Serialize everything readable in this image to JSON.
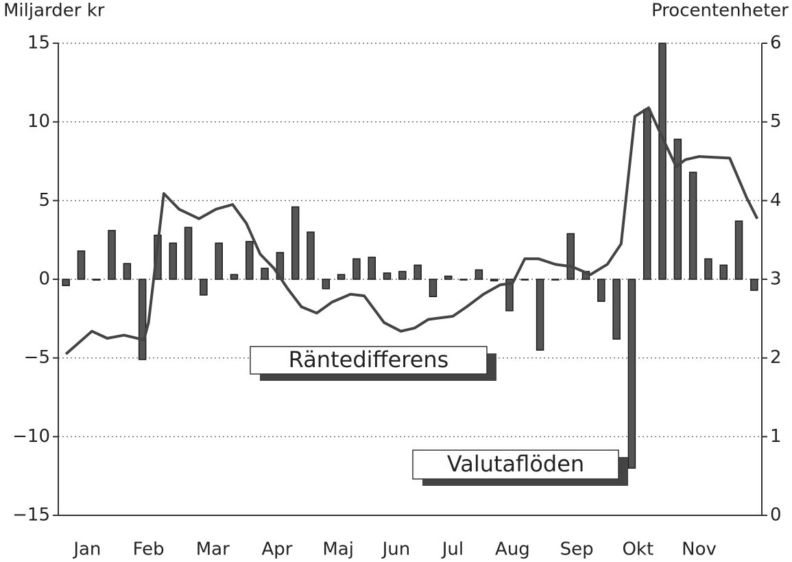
{
  "chart_data": {
    "type": "bar",
    "ylabel": "Miljarder kr",
    "y2label": "Procentenheter",
    "ylim": [
      -15,
      15
    ],
    "yticks": [
      {
        "value": -15,
        "label": "−15"
      },
      {
        "value": -10,
        "label": "−10"
      },
      {
        "value": -5,
        "label": "−5"
      },
      0,
      5,
      10,
      15
    ],
    "y2lim": [
      0,
      6
    ],
    "y2ticks": [
      0,
      1,
      2,
      3,
      4,
      5,
      6
    ],
    "xlim": [
      0,
      46
    ],
    "xticks": [
      {
        "value": 1.9,
        "label": "Jan"
      },
      {
        "value": 5.9,
        "label": "Feb"
      },
      {
        "value": 10.1,
        "label": "Mar"
      },
      {
        "value": 14.3,
        "label": "Apr"
      },
      {
        "value": 18.3,
        "label": "Maj"
      },
      {
        "value": 22.1,
        "label": "Jun"
      },
      {
        "value": 25.8,
        "label": "Jul"
      },
      {
        "value": 29.7,
        "label": "Aug"
      },
      {
        "value": 33.9,
        "label": "Sep"
      },
      {
        "value": 37.9,
        "label": "Okt"
      },
      {
        "value": 41.9,
        "label": "Nov"
      }
    ],
    "grid": true,
    "series": [
      {
        "name": "Valutaflöden",
        "type": "bar",
        "color": "#555555",
        "x": [
          0.5,
          1.5,
          2.5,
          3.5,
          4.5,
          5.5,
          6.5,
          7.5,
          8.5,
          9.5,
          10.5,
          11.5,
          12.5,
          13.5,
          14.5,
          15.5,
          16.5,
          17.5,
          18.5,
          19.5,
          20.5,
          21.5,
          22.5,
          23.5,
          24.5,
          25.5,
          26.5,
          27.5,
          28.5,
          29.5,
          30.5,
          31.5,
          32.5,
          33.5,
          34.5,
          35.5,
          36.5,
          37.5,
          38.5,
          39.5,
          40.5,
          41.5,
          42.5,
          43.5,
          44.5,
          45.5
        ],
        "values": [
          -0.4,
          1.8,
          -0.05,
          3.1,
          1.0,
          -5.1,
          2.8,
          2.3,
          3.3,
          -1.0,
          2.3,
          0.3,
          2.4,
          0.7,
          1.7,
          4.6,
          3.0,
          -0.6,
          0.3,
          1.3,
          1.4,
          0.4,
          0.5,
          0.9,
          -1.1,
          0.2,
          0,
          0.6,
          -0.1,
          -2.0,
          0,
          -4.5,
          0,
          2.9,
          0.5,
          -1.4,
          -3.8,
          -12.0,
          10.8,
          15.0,
          8.9,
          6.8,
          1.3,
          0.9,
          3.7,
          -0.7
        ]
      },
      {
        "name": "Räntedifferens",
        "type": "line",
        "axis": "y2",
        "color": "#444444",
        "x": [
          0.5,
          2.2,
          3.2,
          4.3,
          5.6,
          5.9,
          6.9,
          7.9,
          9.2,
          10.3,
          11.4,
          12.3,
          13.2,
          14.1,
          15.0,
          15.9,
          16.9,
          17.9,
          19.1,
          20.0,
          21.3,
          22.4,
          23.3,
          24.2,
          25.8,
          26.7,
          27.8,
          28.9,
          29.7,
          30.5,
          31.4,
          32.5,
          33.6,
          34.8,
          35.9,
          36.8,
          37.7,
          38.6,
          39.5,
          40.4,
          41.0,
          41.9,
          43.9,
          45.0,
          45.7
        ],
        "values": [
          2.05,
          2.34,
          2.25,
          2.29,
          2.23,
          2.45,
          4.09,
          3.89,
          3.77,
          3.89,
          3.95,
          3.71,
          3.32,
          3.14,
          2.88,
          2.65,
          2.57,
          2.71,
          2.81,
          2.79,
          2.45,
          2.34,
          2.38,
          2.49,
          2.53,
          2.65,
          2.81,
          2.93,
          2.95,
          3.26,
          3.26,
          3.19,
          3.16,
          3.06,
          3.19,
          3.45,
          5.07,
          5.18,
          4.8,
          4.43,
          4.52,
          4.56,
          4.54,
          4.04,
          3.77
        ]
      }
    ]
  }
}
